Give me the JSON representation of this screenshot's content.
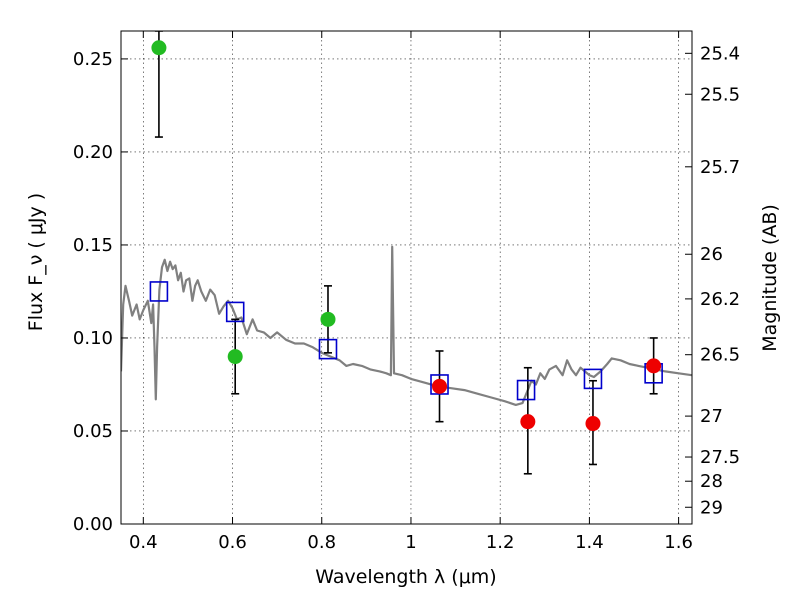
{
  "chart_data": {
    "type": "scatter",
    "xlabel": "Wavelength  λ (μm)",
    "ylabel": "Flux  F_ν  ( μJy )",
    "ylabel_right": "Magnitude (AB)",
    "xlim": [
      0.35,
      1.63
    ],
    "ylim": [
      0.0,
      0.265
    ],
    "x_ticks": [
      0.4,
      0.6,
      0.8,
      1.0,
      1.2,
      1.4,
      1.6
    ],
    "x_tick_labels": [
      "0.4",
      "0.6",
      "0.8",
      "1",
      "1.2",
      "1.4",
      "1.6"
    ],
    "y_ticks": [
      0.0,
      0.05,
      0.1,
      0.15,
      0.2,
      0.25
    ],
    "y_tick_labels": [
      "0.00",
      "0.05",
      "0.10",
      "0.15",
      "0.20",
      "0.25"
    ],
    "right_ticks": [
      {
        "label": "25.4",
        "flux": 0.253
      },
      {
        "label": "25.5",
        "flux": 0.231
      },
      {
        "label": "25.7",
        "flux": 0.192
      },
      {
        "label": "26",
        "flux": 0.145
      },
      {
        "label": "26.2",
        "flux": 0.121
      },
      {
        "label": "26.5",
        "flux": 0.091
      },
      {
        "label": "27",
        "flux": 0.058
      },
      {
        "label": "27.5",
        "flux": 0.036
      },
      {
        "label": "28",
        "flux": 0.023
      },
      {
        "label": "29",
        "flux": 0.009
      }
    ],
    "grid": true,
    "series": [
      {
        "marker": "circle",
        "color": "#22bb22",
        "points": [
          {
            "x": 0.435,
            "y": 0.256,
            "err_hi": 0.265,
            "err_lo": 0.208
          },
          {
            "x": 0.606,
            "y": 0.09,
            "err_hi": 0.11,
            "err_lo": 0.07
          },
          {
            "x": 0.814,
            "y": 0.11,
            "err_hi": 0.128,
            "err_lo": 0.092
          }
        ]
      },
      {
        "marker": "circle",
        "color": "#ee0000",
        "points": [
          {
            "x": 1.064,
            "y": 0.074,
            "err_hi": 0.093,
            "err_lo": 0.055
          },
          {
            "x": 1.262,
            "y": 0.055,
            "err_hi": 0.084,
            "err_lo": 0.027
          },
          {
            "x": 1.408,
            "y": 0.054,
            "err_hi": 0.077,
            "err_lo": 0.032
          },
          {
            "x": 1.544,
            "y": 0.085,
            "err_hi": 0.1,
            "err_lo": 0.07
          }
        ]
      },
      {
        "marker": "open-square",
        "color": "#0000cc",
        "points": [
          {
            "x": 0.435,
            "y": 0.125
          },
          {
            "x": 0.606,
            "y": 0.114
          },
          {
            "x": 0.814,
            "y": 0.094
          },
          {
            "x": 1.064,
            "y": 0.075
          },
          {
            "x": 1.258,
            "y": 0.072
          },
          {
            "x": 1.408,
            "y": 0.078
          },
          {
            "x": 1.544,
            "y": 0.081
          }
        ]
      },
      {
        "marker": "line",
        "color": "#808080",
        "points": [
          [
            0.35,
            0.082
          ],
          [
            0.355,
            0.118
          ],
          [
            0.36,
            0.128
          ],
          [
            0.368,
            0.12
          ],
          [
            0.375,
            0.112
          ],
          [
            0.385,
            0.118
          ],
          [
            0.392,
            0.11
          ],
          [
            0.4,
            0.115
          ],
          [
            0.41,
            0.12
          ],
          [
            0.418,
            0.108
          ],
          [
            0.422,
            0.118
          ],
          [
            0.425,
            0.095
          ],
          [
            0.428,
            0.067
          ],
          [
            0.431,
            0.095
          ],
          [
            0.436,
            0.126
          ],
          [
            0.442,
            0.138
          ],
          [
            0.448,
            0.142
          ],
          [
            0.454,
            0.136
          ],
          [
            0.46,
            0.141
          ],
          [
            0.466,
            0.137
          ],
          [
            0.472,
            0.139
          ],
          [
            0.478,
            0.131
          ],
          [
            0.484,
            0.135
          ],
          [
            0.49,
            0.125
          ],
          [
            0.496,
            0.131
          ],
          [
            0.503,
            0.132
          ],
          [
            0.51,
            0.12
          ],
          [
            0.516,
            0.128
          ],
          [
            0.522,
            0.131
          ],
          [
            0.53,
            0.125
          ],
          [
            0.54,
            0.12
          ],
          [
            0.55,
            0.126
          ],
          [
            0.56,
            0.123
          ],
          [
            0.57,
            0.113
          ],
          [
            0.58,
            0.117
          ],
          [
            0.59,
            0.12
          ],
          [
            0.6,
            0.116
          ],
          [
            0.61,
            0.11
          ],
          [
            0.62,
            0.111
          ],
          [
            0.632,
            0.102
          ],
          [
            0.645,
            0.11
          ],
          [
            0.655,
            0.104
          ],
          [
            0.67,
            0.103
          ],
          [
            0.685,
            0.1
          ],
          [
            0.7,
            0.103
          ],
          [
            0.72,
            0.099
          ],
          [
            0.74,
            0.097
          ],
          [
            0.76,
            0.097
          ],
          [
            0.78,
            0.095
          ],
          [
            0.8,
            0.092
          ],
          [
            0.82,
            0.09
          ],
          [
            0.84,
            0.088
          ],
          [
            0.855,
            0.085
          ],
          [
            0.87,
            0.086
          ],
          [
            0.89,
            0.085
          ],
          [
            0.91,
            0.083
          ],
          [
            0.93,
            0.082
          ],
          [
            0.945,
            0.081
          ],
          [
            0.955,
            0.08
          ],
          [
            0.958,
            0.149
          ],
          [
            0.962,
            0.081
          ],
          [
            0.98,
            0.08
          ],
          [
            1.0,
            0.078
          ],
          [
            1.03,
            0.076
          ],
          [
            1.06,
            0.074
          ],
          [
            1.09,
            0.073
          ],
          [
            1.12,
            0.072
          ],
          [
            1.15,
            0.07
          ],
          [
            1.18,
            0.068
          ],
          [
            1.21,
            0.066
          ],
          [
            1.235,
            0.064
          ],
          [
            1.25,
            0.065
          ],
          [
            1.262,
            0.072
          ],
          [
            1.27,
            0.077
          ],
          [
            1.28,
            0.075
          ],
          [
            1.29,
            0.081
          ],
          [
            1.3,
            0.078
          ],
          [
            1.31,
            0.083
          ],
          [
            1.325,
            0.085
          ],
          [
            1.34,
            0.08
          ],
          [
            1.35,
            0.088
          ],
          [
            1.36,
            0.083
          ],
          [
            1.37,
            0.08
          ],
          [
            1.38,
            0.084
          ],
          [
            1.39,
            0.082
          ],
          [
            1.4,
            0.08
          ],
          [
            1.41,
            0.079
          ],
          [
            1.425,
            0.082
          ],
          [
            1.44,
            0.086
          ],
          [
            1.45,
            0.089
          ],
          [
            1.47,
            0.088
          ],
          [
            1.49,
            0.086
          ],
          [
            1.51,
            0.085
          ],
          [
            1.53,
            0.084
          ],
          [
            1.55,
            0.083
          ],
          [
            1.57,
            0.082
          ],
          [
            1.6,
            0.081
          ],
          [
            1.63,
            0.08
          ]
        ]
      }
    ]
  }
}
